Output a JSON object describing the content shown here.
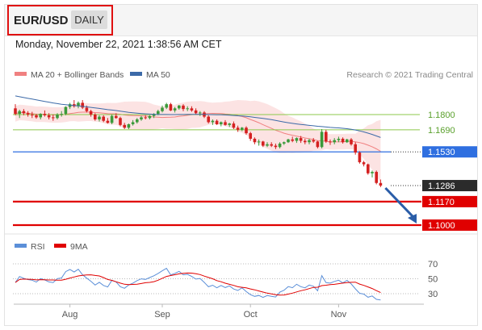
{
  "header": {
    "pair": "EUR/USD",
    "period": "DAILY"
  },
  "timestamp": "Monday, November 22, 2021 1:38:56 AM CET",
  "credit": "Research © 2021 Trading Central",
  "legend": {
    "bands": "MA 20 + Bollinger Bands",
    "ma50": "MA 50",
    "rsi": "RSI",
    "ma9": "9MA"
  },
  "colors": {
    "bands": "#f08080",
    "ma50": "#3c6aa8",
    "up": "#3a9a3a",
    "down": "#d42020",
    "pivot": "#2f6fe0",
    "support": "#e00000",
    "green_level": "#8cc84b",
    "arrow": "#2a5da8"
  },
  "chart_data": {
    "type": "candlestick",
    "price_levels": [
      {
        "value": 1.18,
        "label": "1.1800",
        "style": "green-line"
      },
      {
        "value": 1.169,
        "label": "1.1690",
        "style": "green-line"
      },
      {
        "value": 1.153,
        "label": "1.1530",
        "style": "pivot-box"
      },
      {
        "value": 1.1286,
        "label": "1.1286",
        "style": "last-price-box"
      },
      {
        "value": 1.117,
        "label": "1.1170",
        "style": "support-box"
      },
      {
        "value": 1.1,
        "label": "1.1000",
        "style": "support-box"
      }
    ],
    "x_tick_labels": [
      "Aug",
      "Sep",
      "Oct",
      "Nov"
    ],
    "rsi_levels": [
      70,
      50,
      30
    ],
    "rsi_tick_labels": [
      "70",
      "50",
      "30"
    ],
    "forecast_arrow": {
      "from": 1.1286,
      "to": 1.1
    },
    "ohlc": [
      [
        1.1845,
        1.1875,
        1.1795,
        1.1805
      ],
      [
        1.1805,
        1.1835,
        1.1775,
        1.1825
      ],
      [
        1.1825,
        1.184,
        1.1795,
        1.181
      ],
      [
        1.181,
        1.1825,
        1.1785,
        1.18
      ],
      [
        1.18,
        1.182,
        1.1775,
        1.1795
      ],
      [
        1.1795,
        1.1805,
        1.177,
        1.178
      ],
      [
        1.178,
        1.181,
        1.1765,
        1.1805
      ],
      [
        1.1805,
        1.183,
        1.1785,
        1.1795
      ],
      [
        1.1795,
        1.181,
        1.1765,
        1.178
      ],
      [
        1.178,
        1.18,
        1.1755,
        1.1775
      ],
      [
        1.1775,
        1.181,
        1.1765,
        1.18
      ],
      [
        1.18,
        1.1825,
        1.1785,
        1.1805
      ],
      [
        1.1805,
        1.186,
        1.1795,
        1.1855
      ],
      [
        1.1855,
        1.1885,
        1.184,
        1.1875
      ],
      [
        1.1875,
        1.1905,
        1.185,
        1.186
      ],
      [
        1.186,
        1.1895,
        1.1845,
        1.1885
      ],
      [
        1.1885,
        1.1905,
        1.184,
        1.185
      ],
      [
        1.185,
        1.1865,
        1.1815,
        1.1825
      ],
      [
        1.1825,
        1.1835,
        1.1785,
        1.18
      ],
      [
        1.18,
        1.181,
        1.1755,
        1.1765
      ],
      [
        1.1765,
        1.1795,
        1.175,
        1.1785
      ],
      [
        1.1785,
        1.1795,
        1.1745,
        1.1755
      ],
      [
        1.1755,
        1.1775,
        1.1735,
        1.174
      ],
      [
        1.174,
        1.18,
        1.173,
        1.179
      ],
      [
        1.179,
        1.181,
        1.177,
        1.1775
      ],
      [
        1.1775,
        1.1785,
        1.1715,
        1.1725
      ],
      [
        1.1725,
        1.174,
        1.1695,
        1.1705
      ],
      [
        1.1705,
        1.1735,
        1.1695,
        1.173
      ],
      [
        1.173,
        1.176,
        1.172,
        1.1745
      ],
      [
        1.1745,
        1.1775,
        1.1735,
        1.1765
      ],
      [
        1.1765,
        1.179,
        1.1755,
        1.178
      ],
      [
        1.178,
        1.1795,
        1.1765,
        1.1775
      ],
      [
        1.1775,
        1.1795,
        1.1765,
        1.179
      ],
      [
        1.179,
        1.181,
        1.1775,
        1.1805
      ],
      [
        1.1805,
        1.1835,
        1.1795,
        1.1825
      ],
      [
        1.1825,
        1.1865,
        1.1815,
        1.185
      ],
      [
        1.185,
        1.1885,
        1.184,
        1.1875
      ],
      [
        1.1875,
        1.1885,
        1.1825,
        1.183
      ],
      [
        1.183,
        1.1855,
        1.1815,
        1.1845
      ],
      [
        1.1845,
        1.187,
        1.1835,
        1.1865
      ],
      [
        1.1865,
        1.1875,
        1.1825,
        1.184
      ],
      [
        1.184,
        1.186,
        1.1825,
        1.1845
      ],
      [
        1.1845,
        1.186,
        1.182,
        1.183
      ],
      [
        1.183,
        1.1845,
        1.18,
        1.181
      ],
      [
        1.181,
        1.1825,
        1.179,
        1.1815
      ],
      [
        1.1815,
        1.1825,
        1.1775,
        1.1785
      ],
      [
        1.1785,
        1.1795,
        1.1735,
        1.1745
      ],
      [
        1.1745,
        1.1765,
        1.1725,
        1.1755
      ],
      [
        1.1755,
        1.1765,
        1.1725,
        1.173
      ],
      [
        1.173,
        1.175,
        1.1715,
        1.1745
      ],
      [
        1.1745,
        1.176,
        1.172,
        1.1725
      ],
      [
        1.1725,
        1.174,
        1.171,
        1.1735
      ],
      [
        1.1735,
        1.175,
        1.1695,
        1.1705
      ],
      [
        1.1705,
        1.172,
        1.1675,
        1.169
      ],
      [
        1.169,
        1.171,
        1.168,
        1.1705
      ],
      [
        1.1705,
        1.1715,
        1.1655,
        1.1665
      ],
      [
        1.1665,
        1.1675,
        1.161,
        1.1625
      ],
      [
        1.1625,
        1.1635,
        1.1585,
        1.16
      ],
      [
        1.16,
        1.162,
        1.1575,
        1.1605
      ],
      [
        1.1605,
        1.161,
        1.1565,
        1.1575
      ],
      [
        1.1575,
        1.16,
        1.1565,
        1.1585
      ],
      [
        1.1585,
        1.16,
        1.1565,
        1.1575
      ],
      [
        1.1575,
        1.159,
        1.155,
        1.1565
      ],
      [
        1.1565,
        1.16,
        1.1555,
        1.159
      ],
      [
        1.159,
        1.1605,
        1.158,
        1.16
      ],
      [
        1.16,
        1.1625,
        1.1595,
        1.162
      ],
      [
        1.162,
        1.164,
        1.16,
        1.161
      ],
      [
        1.161,
        1.1635,
        1.1595,
        1.163
      ],
      [
        1.163,
        1.1645,
        1.1595,
        1.161
      ],
      [
        1.161,
        1.1625,
        1.1585,
        1.16
      ],
      [
        1.16,
        1.1625,
        1.1585,
        1.1615
      ],
      [
        1.1615,
        1.163,
        1.1595,
        1.1605
      ],
      [
        1.1605,
        1.161,
        1.1555,
        1.1565
      ],
      [
        1.1565,
        1.1695,
        1.1555,
        1.1675
      ],
      [
        1.1675,
        1.169,
        1.1595,
        1.1605
      ],
      [
        1.1605,
        1.162,
        1.158,
        1.16
      ],
      [
        1.16,
        1.163,
        1.1585,
        1.1615
      ],
      [
        1.1615,
        1.164,
        1.16,
        1.1625
      ],
      [
        1.1625,
        1.1635,
        1.159,
        1.16
      ],
      [
        1.16,
        1.1625,
        1.1595,
        1.162
      ],
      [
        1.162,
        1.163,
        1.1575,
        1.1585
      ],
      [
        1.1585,
        1.16,
        1.151,
        1.1525
      ],
      [
        1.1525,
        1.1535,
        1.1445,
        1.1455
      ],
      [
        1.1455,
        1.1465,
        1.1425,
        1.144
      ],
      [
        1.144,
        1.1445,
        1.1365,
        1.1375
      ],
      [
        1.1375,
        1.1395,
        1.1345,
        1.1385
      ],
      [
        1.1385,
        1.1395,
        1.1295,
        1.1305
      ],
      [
        1.1305,
        1.133,
        1.1275,
        1.1286
      ]
    ]
  }
}
